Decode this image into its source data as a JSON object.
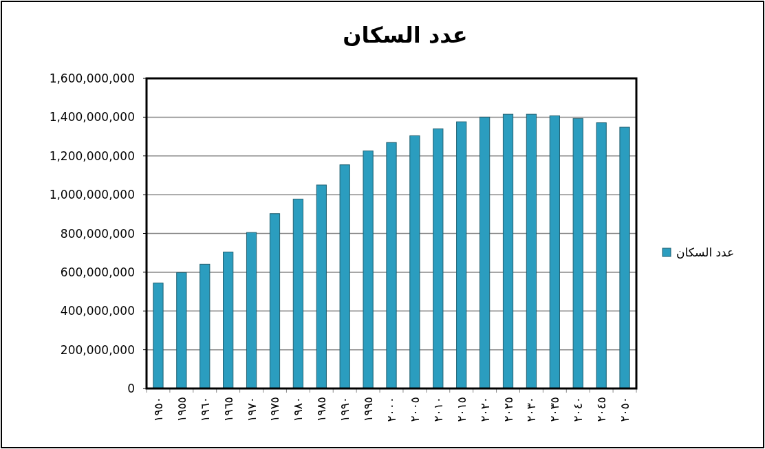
{
  "chart_data": {
    "type": "bar",
    "title": "عدد السكان",
    "categories": [
      "١٩٥٠",
      "١٩٥٥",
      "١٩٦٠",
      "١٩٦٥",
      "١٩٧٠",
      "١٩٧٥",
      "١٩٨٠",
      "١٩٨٥",
      "١٩٩٠",
      "١٩٩٥",
      "٢٠٠٠",
      "٢٠٠٥",
      "٢٠١٠",
      "٢٠١٥",
      "٢٠٢٠",
      "٢٠٢٥",
      "٢٠٣٠",
      "٢٠٣٥",
      "٢٠٤٠",
      "٢٠٤٥",
      "٢٠٥٠"
    ],
    "series": [
      {
        "name": "عدد السكان",
        "color": "#2b9dbf",
        "values": [
          544000000,
          598000000,
          641000000,
          704000000,
          805000000,
          902000000,
          977000000,
          1050000000,
          1154000000,
          1226000000,
          1269000000,
          1304000000,
          1340000000,
          1376000000,
          1400000000,
          1415000000,
          1415000000,
          1407000000,
          1393000000,
          1371000000,
          1348000000
        ]
      }
    ],
    "ylim": [
      0,
      1600000000
    ],
    "yticks": [
      {
        "value": 0,
        "label": "0"
      },
      {
        "value": 200000000,
        "label": "200,000,000"
      },
      {
        "value": 400000000,
        "label": "400,000,000"
      },
      {
        "value": 600000000,
        "label": "600,000,000"
      },
      {
        "value": 800000000,
        "label": "800,000,000"
      },
      {
        "value": 1000000000,
        "label": "1,000,000,000"
      },
      {
        "value": 1200000000,
        "label": "1,200,000,000"
      },
      {
        "value": 1400000000,
        "label": "1,400,000,000"
      },
      {
        "value": 1600000000,
        "label": "1,600,000,000"
      }
    ],
    "grid": "y",
    "legend": "right"
  }
}
